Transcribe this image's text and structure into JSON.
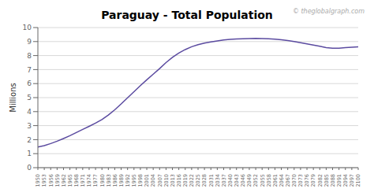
{
  "chart_data": {
    "type": "line",
    "title": "Paraguay - Total Population",
    "y_label": "Millions",
    "annotations": [
      "© theglobalgraph.com"
    ],
    "x": [
      1950,
      1953,
      1956,
      1959,
      1962,
      1965,
      1968,
      1971,
      1974,
      1977,
      1980,
      1983,
      1986,
      1989,
      1992,
      1995,
      1998,
      2001,
      2004,
      2007,
      2010,
      2013,
      2016,
      2019,
      2022,
      2025,
      2028,
      2031,
      2034,
      2037,
      2040,
      2043,
      2046,
      2049,
      2052,
      2055,
      2058,
      2061,
      2064,
      2067,
      2070,
      2073,
      2076,
      2079,
      2082,
      2085,
      2088,
      2091,
      2094,
      2097,
      2100
    ],
    "values": [
      1.47,
      1.57,
      1.72,
      1.89,
      2.08,
      2.28,
      2.51,
      2.73,
      2.95,
      3.18,
      3.43,
      3.76,
      4.13,
      4.55,
      4.99,
      5.42,
      5.86,
      6.27,
      6.67,
      7.07,
      7.5,
      7.87,
      8.18,
      8.43,
      8.63,
      8.78,
      8.89,
      8.97,
      9.05,
      9.12,
      9.16,
      9.18,
      9.2,
      9.22,
      9.23,
      9.22,
      9.2,
      9.17,
      9.13,
      9.07,
      9.0,
      8.92,
      8.84,
      8.75,
      8.66,
      8.57,
      8.53,
      8.52,
      8.57,
      8.6,
      8.62
    ],
    "color": "#5B4BA0",
    "xlim": [
      1950,
      2100
    ],
    "xticks": [
      1950,
      1953,
      1956,
      1959,
      1962,
      1965,
      1968,
      1971,
      1974,
      1977,
      1980,
      1983,
      1986,
      1989,
      1992,
      1995,
      1998,
      2001,
      2004,
      2007,
      2010,
      2013,
      2016,
      2019,
      2022,
      2025,
      2028,
      2031,
      2034,
      2037,
      2040,
      2043,
      2046,
      2049,
      2052,
      2055,
      2058,
      2061,
      2064,
      2067,
      2070,
      2073,
      2076,
      2079,
      2082,
      2085,
      2088,
      2091,
      2094,
      2097,
      2100
    ],
    "ylim": [
      0,
      10
    ],
    "yticks": [
      0,
      1,
      2,
      3,
      4,
      5,
      6,
      7,
      8,
      9,
      10
    ],
    "grid": true
  }
}
